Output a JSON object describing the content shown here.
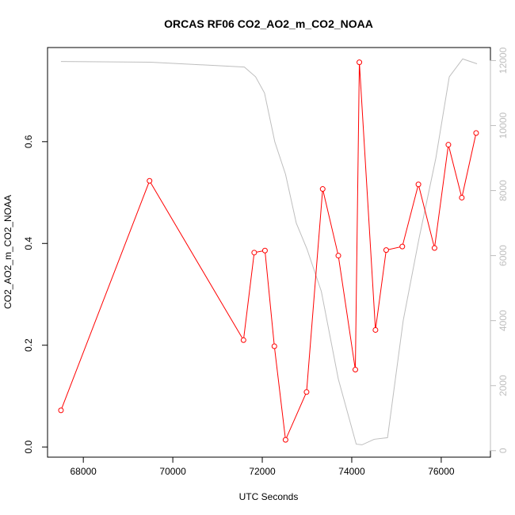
{
  "chart_data": {
    "type": "line",
    "title": "ORCAS RF06 CO2_AO2_m_CO2_NOAA",
    "xlabel": "UTC Seconds",
    "ylabel": "CO2_AO2_m_CO2_NOAA",
    "xlim": [
      67200,
      77100
    ],
    "ylim": [
      -0.02,
      0.785
    ],
    "y2lim": [
      -200,
      12400
    ],
    "x_ticks": [
      68000,
      70000,
      72000,
      74000,
      76000
    ],
    "y_ticks": [
      0.0,
      0.2,
      0.4,
      0.6
    ],
    "y_tick_labels": [
      "0.0",
      "0.2",
      "0.4",
      "0.6"
    ],
    "y2_ticks": [
      0,
      2000,
      4000,
      6000,
      8000,
      10000,
      12000
    ],
    "grid": false,
    "series": [
      {
        "axis": "left",
        "color": "#ff0000",
        "marker": "open-circle",
        "x": [
          67500,
          69480,
          71580,
          71820,
          72060,
          72270,
          72520,
          72990,
          73350,
          73700,
          74080,
          74170,
          74530,
          74770,
          75130,
          75490,
          75850,
          76160,
          76460,
          76780
        ],
        "values": [
          0.072,
          0.523,
          0.21,
          0.382,
          0.386,
          0.198,
          0.014,
          0.108,
          0.507,
          0.376,
          0.152,
          0.756,
          0.23,
          0.387,
          0.394,
          0.516,
          0.391,
          0.594,
          0.49,
          0.617
        ]
      },
      {
        "axis": "right",
        "color": "#bebebe",
        "marker": "none",
        "x": [
          67500,
          69500,
          71600,
          71850,
          72050,
          72280,
          72520,
          72760,
          73000,
          73320,
          73700,
          74100,
          74230,
          74500,
          74800,
          75150,
          75500,
          75880,
          76180,
          76480,
          76800
        ],
        "values": [
          11970,
          11950,
          11800,
          11500,
          11000,
          9500,
          8500,
          7000,
          6200,
          4900,
          2200,
          200,
          180,
          350,
          400,
          4000,
          6500,
          9000,
          11500,
          12050,
          11900
        ]
      }
    ]
  }
}
